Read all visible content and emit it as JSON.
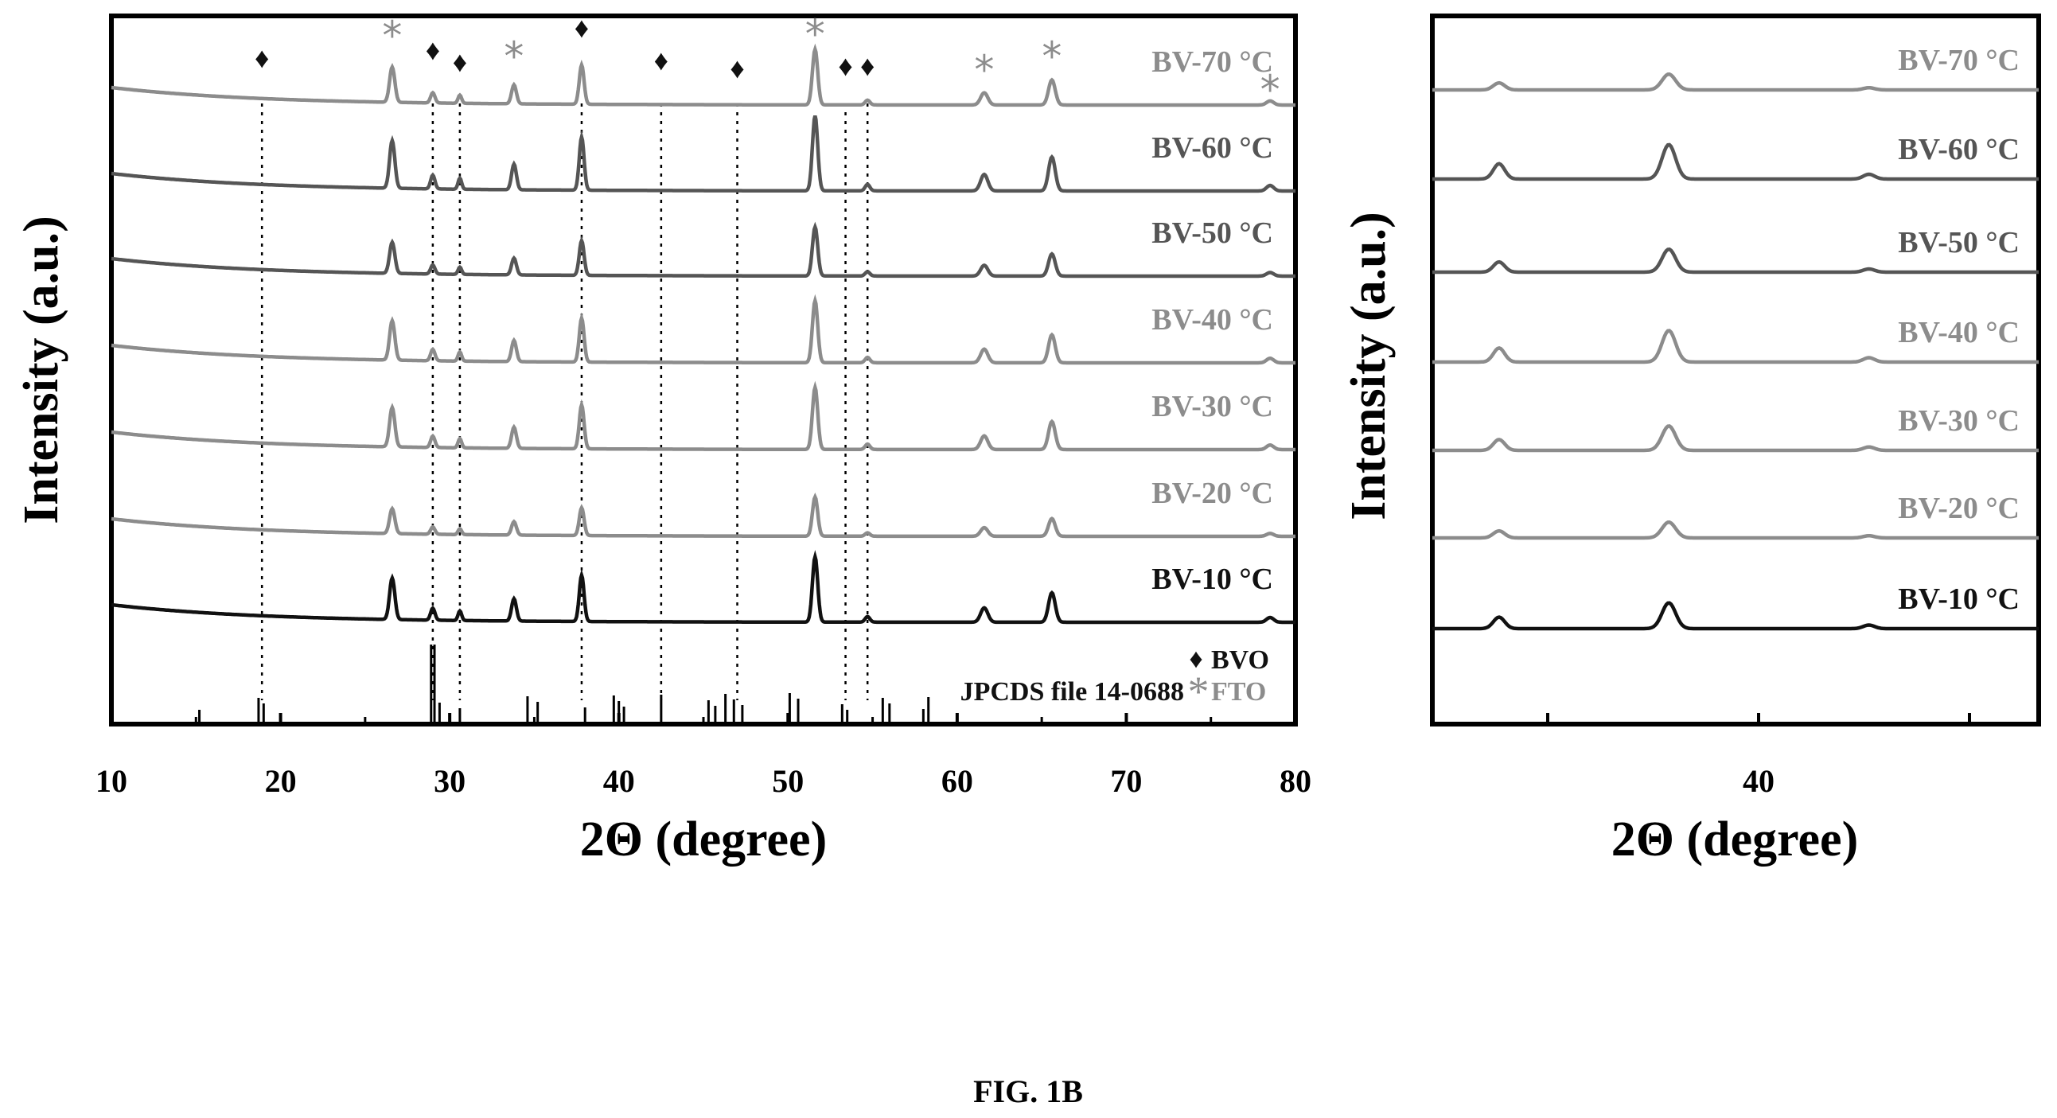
{
  "figure_label": "FIG. 1B",
  "colors": {
    "light": "#8c8c8c",
    "dark": "#555555",
    "black": "#111111"
  },
  "chart_data": [
    {
      "type": "line",
      "panel": "left",
      "xlabel": "2Θ (degree)",
      "ylabel": "Intensity (a.u.)",
      "xlim": [
        10,
        80
      ],
      "x_ticks": [
        10,
        20,
        30,
        40,
        50,
        60,
        70,
        80
      ],
      "series": [
        {
          "name": "BV-70 °C",
          "tone": "light",
          "scale": 0.85
        },
        {
          "name": "BV-60 °C",
          "tone": "dark",
          "scale": 1.15
        },
        {
          "name": "BV-50 °C",
          "tone": "dark",
          "scale": 0.75
        },
        {
          "name": "BV-40 °C",
          "tone": "light",
          "scale": 0.95
        },
        {
          "name": "BV-30 °C",
          "tone": "light",
          "scale": 0.95
        },
        {
          "name": "BV-20 °C",
          "tone": "light",
          "scale": 0.6
        },
        {
          "name": "BV-10 °C",
          "tone": "black",
          "scale": 1.0
        }
      ],
      "peaks": [
        {
          "x": 26.6,
          "h": 52,
          "w": 0.22
        },
        {
          "x": 29.0,
          "h": 15,
          "w": 0.18
        },
        {
          "x": 30.6,
          "h": 12,
          "w": 0.15
        },
        {
          "x": 33.8,
          "h": 28,
          "w": 0.2
        },
        {
          "x": 37.8,
          "h": 58,
          "w": 0.2
        },
        {
          "x": 51.6,
          "h": 82,
          "w": 0.22
        },
        {
          "x": 54.7,
          "h": 7,
          "w": 0.2
        },
        {
          "x": 61.6,
          "h": 18,
          "w": 0.3
        },
        {
          "x": 65.6,
          "h": 37,
          "w": 0.28
        },
        {
          "x": 78.5,
          "h": 6,
          "w": 0.3
        }
      ],
      "bvo_markers": [
        18.9,
        29.0,
        30.6,
        37.8,
        42.5,
        47.0,
        53.4,
        54.7
      ],
      "fto_markers": [
        26.6,
        33.8,
        51.6,
        61.6,
        65.6,
        78.5
      ],
      "reference_lines": [
        15.2,
        18.7,
        19.0,
        28.9,
        29.1,
        29.4,
        30.6,
        34.6,
        35.2,
        38.0,
        39.7,
        40.0,
        40.3,
        42.5,
        45.3,
        45.7,
        46.3,
        46.8,
        47.3,
        50.1,
        50.6,
        53.2,
        53.5,
        55.6,
        56.0,
        58.0,
        58.3
      ],
      "reference_label": "JPCDS file 14-0688",
      "legend": [
        {
          "symbol": "♦",
          "label": "BVO",
          "tone": "black"
        },
        {
          "symbol": "*",
          "label": "FTO",
          "tone": "light"
        }
      ]
    },
    {
      "type": "line",
      "panel": "right",
      "xlabel": "2Θ (degree)",
      "ylabel": "Intensity (a.u.)",
      "x_ticks": [
        40
      ],
      "series": [
        {
          "name": "BV-70 °C",
          "tone": "light",
          "scale": 0.55
        },
        {
          "name": "BV-60 °C",
          "tone": "dark",
          "scale": 1.2
        },
        {
          "name": "BV-50 °C",
          "tone": "dark",
          "scale": 0.8
        },
        {
          "name": "BV-40 °C",
          "tone": "light",
          "scale": 1.1
        },
        {
          "name": "BV-30 °C",
          "tone": "light",
          "scale": 0.85
        },
        {
          "name": "BV-20 °C",
          "tone": "light",
          "scale": 0.55
        },
        {
          "name": "BV-10 °C",
          "tone": "black",
          "scale": 0.9
        }
      ]
    }
  ]
}
